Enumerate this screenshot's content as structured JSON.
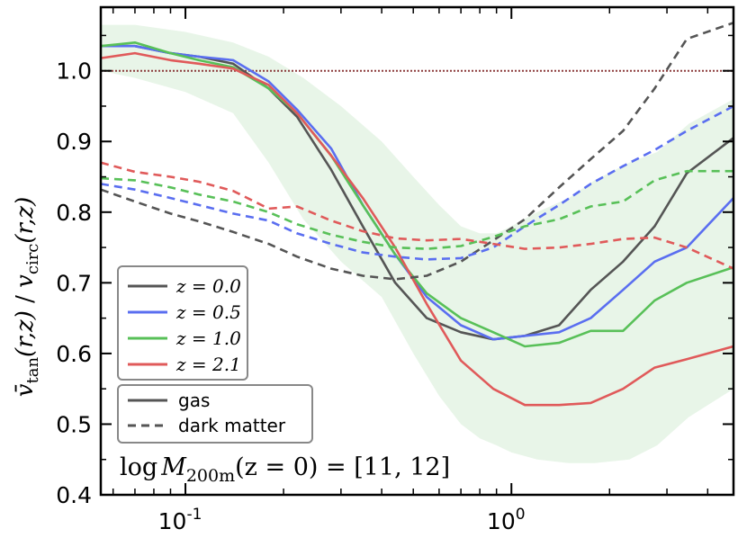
{
  "chart_data": {
    "type": "line",
    "xscale": "log",
    "xlim": [
      0.055,
      4.8
    ],
    "ylim": [
      0.4,
      1.09
    ],
    "xticks": [
      {
        "value": 0.1,
        "label": "10",
        "exp": "-1"
      },
      {
        "value": 1,
        "label": "10",
        "exp": "0"
      }
    ],
    "yticks": [
      {
        "value": 0.4,
        "label": "0.4"
      },
      {
        "value": 0.5,
        "label": "0.5"
      },
      {
        "value": 0.6,
        "label": "0.6"
      },
      {
        "value": 0.7,
        "label": "0.7"
      },
      {
        "value": 0.8,
        "label": "0.8"
      },
      {
        "value": 0.9,
        "label": "0.9"
      },
      {
        "value": 1.0,
        "label": "1.0"
      }
    ],
    "ylabel": "v̄tan(r,z) / vcirc(r,z)",
    "ylabel_parts": {
      "v_symbol": "v̄",
      "sub_tan": "tan",
      "args": "(r,z)",
      "sep": " / ",
      "v2": "v",
      "sub_circ": "circ",
      "args2": "(r,z)"
    },
    "reference_line": {
      "y": 1.0,
      "style": "dotted",
      "color": "#8b3a3a"
    },
    "band": {
      "color": "#4caf50",
      "x": [
        0.055,
        0.07,
        0.1,
        0.14,
        0.18,
        0.23,
        0.3,
        0.4,
        0.5,
        0.6,
        0.7,
        0.8,
        0.9,
        1.0,
        1.2,
        1.5,
        1.8,
        2.3,
        2.8,
        3.5,
        4.8
      ],
      "upper": [
        1.065,
        1.065,
        1.055,
        1.04,
        1.02,
        0.99,
        0.95,
        0.9,
        0.85,
        0.81,
        0.78,
        0.77,
        0.77,
        0.78,
        0.8,
        0.82,
        0.845,
        0.87,
        0.885,
        0.925,
        0.96
      ],
      "lower": [
        1.0,
        0.99,
        0.97,
        0.94,
        0.87,
        0.79,
        0.73,
        0.68,
        0.6,
        0.54,
        0.5,
        0.48,
        0.47,
        0.46,
        0.45,
        0.445,
        0.445,
        0.45,
        0.47,
        0.51,
        0.55
      ]
    },
    "series": [
      {
        "name": "z=0.0 gas",
        "color": "#555555",
        "dash": "solid",
        "x": [
          0.055,
          0.07,
          0.09,
          0.11,
          0.14,
          0.18,
          0.22,
          0.28,
          0.35,
          0.44,
          0.55,
          0.7,
          0.88,
          1.1,
          1.4,
          1.75,
          2.2,
          2.75,
          3.45,
          4.8
        ],
        "y": [
          1.035,
          1.035,
          1.025,
          1.02,
          1.01,
          0.975,
          0.935,
          0.86,
          0.78,
          0.7,
          0.65,
          0.63,
          0.62,
          0.625,
          0.64,
          0.69,
          0.73,
          0.78,
          0.855,
          0.905
        ]
      },
      {
        "name": "z=0.5 gas",
        "color": "#5a6ef0",
        "dash": "solid",
        "x": [
          0.055,
          0.07,
          0.09,
          0.11,
          0.14,
          0.18,
          0.22,
          0.28,
          0.35,
          0.44,
          0.55,
          0.7,
          0.88,
          1.1,
          1.4,
          1.75,
          2.2,
          2.75,
          3.45,
          4.8
        ],
        "y": [
          1.035,
          1.035,
          1.025,
          1.02,
          1.015,
          0.985,
          0.945,
          0.89,
          0.81,
          0.74,
          0.68,
          0.64,
          0.62,
          0.625,
          0.63,
          0.65,
          0.69,
          0.73,
          0.75,
          0.82
        ]
      },
      {
        "name": "z=1.0 gas",
        "color": "#58c058",
        "dash": "solid",
        "x": [
          0.055,
          0.07,
          0.09,
          0.11,
          0.14,
          0.18,
          0.22,
          0.28,
          0.35,
          0.44,
          0.55,
          0.7,
          0.88,
          1.1,
          1.4,
          1.75,
          2.2,
          2.75,
          3.45,
          4.8
        ],
        "y": [
          1.035,
          1.04,
          1.025,
          1.015,
          1.005,
          0.975,
          0.94,
          0.88,
          0.81,
          0.74,
          0.685,
          0.65,
          0.63,
          0.61,
          0.615,
          0.632,
          0.632,
          0.675,
          0.7,
          0.722
        ]
      },
      {
        "name": "z=2.1 gas",
        "color": "#e05a5a",
        "dash": "solid",
        "x": [
          0.055,
          0.07,
          0.09,
          0.11,
          0.14,
          0.18,
          0.22,
          0.28,
          0.35,
          0.44,
          0.55,
          0.7,
          0.88,
          1.1,
          1.4,
          1.75,
          2.2,
          2.75,
          3.45,
          4.8
        ],
        "y": [
          1.018,
          1.025,
          1.015,
          1.01,
          1.003,
          0.98,
          0.94,
          0.88,
          0.82,
          0.75,
          0.67,
          0.59,
          0.55,
          0.527,
          0.527,
          0.53,
          0.55,
          0.58,
          0.592,
          0.61
        ]
      },
      {
        "name": "z=0.0 dark matter",
        "color": "#555555",
        "dash": "dashed",
        "x": [
          0.055,
          0.07,
          0.09,
          0.11,
          0.14,
          0.18,
          0.22,
          0.28,
          0.35,
          0.44,
          0.55,
          0.7,
          0.88,
          1.1,
          1.4,
          1.75,
          2.2,
          2.75,
          3.45,
          4.8
        ],
        "y": [
          0.832,
          0.815,
          0.798,
          0.787,
          0.772,
          0.755,
          0.737,
          0.72,
          0.71,
          0.705,
          0.71,
          0.73,
          0.76,
          0.79,
          0.835,
          0.875,
          0.915,
          0.975,
          1.045,
          1.068
        ]
      },
      {
        "name": "z=0.5 dark matter",
        "color": "#5a6ef0",
        "dash": "dashed",
        "x": [
          0.055,
          0.07,
          0.09,
          0.11,
          0.14,
          0.18,
          0.22,
          0.28,
          0.35,
          0.44,
          0.55,
          0.7,
          0.88,
          1.1,
          1.4,
          1.75,
          2.2,
          2.75,
          3.45,
          4.8
        ],
        "y": [
          0.84,
          0.832,
          0.82,
          0.81,
          0.798,
          0.788,
          0.77,
          0.755,
          0.743,
          0.737,
          0.733,
          0.735,
          0.75,
          0.78,
          0.81,
          0.84,
          0.865,
          0.888,
          0.915,
          0.95
        ]
      },
      {
        "name": "z=1.0 dark matter",
        "color": "#58c058",
        "dash": "dashed",
        "x": [
          0.055,
          0.07,
          0.09,
          0.11,
          0.14,
          0.18,
          0.22,
          0.28,
          0.35,
          0.44,
          0.55,
          0.7,
          0.88,
          1.1,
          1.4,
          1.75,
          2.2,
          2.75,
          3.45,
          4.8
        ],
        "y": [
          0.848,
          0.845,
          0.835,
          0.825,
          0.815,
          0.8,
          0.783,
          0.768,
          0.758,
          0.75,
          0.748,
          0.752,
          0.765,
          0.78,
          0.79,
          0.808,
          0.815,
          0.845,
          0.858,
          0.858
        ]
      },
      {
        "name": "z=2.1 dark matter",
        "color": "#e05a5a",
        "dash": "dashed",
        "x": [
          0.055,
          0.07,
          0.09,
          0.11,
          0.14,
          0.18,
          0.22,
          0.28,
          0.35,
          0.44,
          0.55,
          0.7,
          0.88,
          1.1,
          1.4,
          1.75,
          2.2,
          2.75,
          3.45,
          4.8
        ],
        "y": [
          0.87,
          0.857,
          0.85,
          0.843,
          0.83,
          0.805,
          0.808,
          0.788,
          0.773,
          0.763,
          0.76,
          0.762,
          0.755,
          0.748,
          0.75,
          0.755,
          0.762,
          0.764,
          0.75,
          0.72
        ]
      }
    ],
    "legend_redshift": [
      {
        "label": "z = 0.0",
        "color": "#555555"
      },
      {
        "label": "z = 0.5",
        "color": "#5a6ef0"
      },
      {
        "label": "z = 1.0",
        "color": "#58c058"
      },
      {
        "label": "z = 2.1",
        "color": "#e05a5a"
      }
    ],
    "legend_redshift_placement": "lower-left",
    "legend_type": [
      {
        "label": "gas",
        "dash": "solid",
        "color": "#555555"
      },
      {
        "label": "dark matter",
        "dash": "dashed",
        "color": "#555555"
      }
    ],
    "legend_type_placement": "lower-left",
    "annotation": {
      "prefix": "log",
      "M": "M",
      "sub": "200m",
      "args": "(z = 0) = [11, 12]"
    }
  }
}
